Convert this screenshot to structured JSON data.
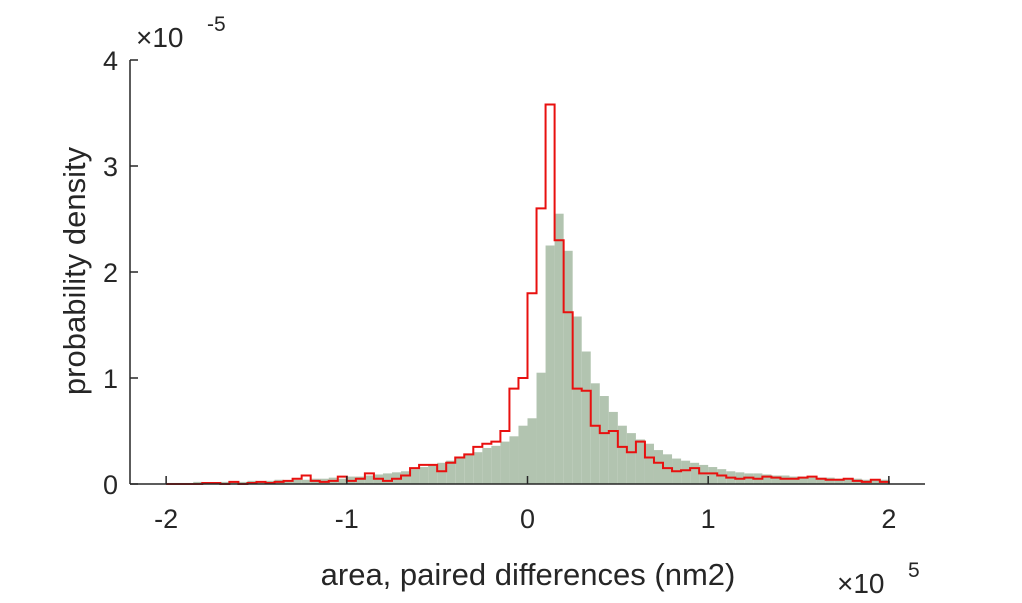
{
  "chart_data": {
    "type": "histogram",
    "xlabel": "area, paired differences (nm2)",
    "ylabel": "probability density",
    "x_multiplier": "×10",
    "x_exponent": "5",
    "y_multiplier": "×10",
    "y_exponent": "-5",
    "xlim": [
      -2.2,
      2.2
    ],
    "ylim": [
      0,
      4
    ],
    "x_ticks": [
      -2,
      -1,
      0,
      1,
      2
    ],
    "x_tick_labels": [
      "-2",
      "-1",
      "0",
      "1",
      "2"
    ],
    "y_ticks": [
      0,
      1,
      2,
      3,
      4
    ],
    "y_tick_labels": [
      "0",
      "1",
      "2",
      "3",
      "4"
    ],
    "bin_edges_start": -2.0,
    "bin_width": 0.05,
    "grid": false,
    "colors": {
      "filled": "#b2c4b0",
      "outline": "#e8100f",
      "axis": "#262626"
    },
    "series": [
      {
        "style": "filled-bars",
        "values": [
          0.01,
          0.01,
          0.01,
          0.02,
          0.01,
          0.01,
          0.02,
          0.02,
          0.02,
          0.03,
          0.02,
          0.03,
          0.04,
          0.03,
          0.04,
          0.04,
          0.05,
          0.05,
          0.06,
          0.05,
          0.07,
          0.07,
          0.08,
          0.09,
          0.1,
          0.11,
          0.12,
          0.14,
          0.16,
          0.18,
          0.2,
          0.22,
          0.25,
          0.28,
          0.3,
          0.34,
          0.36,
          0.4,
          0.45,
          0.55,
          0.62,
          1.05,
          2.25,
          2.55,
          2.2,
          1.58,
          1.25,
          0.95,
          0.83,
          0.68,
          0.55,
          0.48,
          0.42,
          0.38,
          0.32,
          0.28,
          0.24,
          0.22,
          0.2,
          0.18,
          0.16,
          0.14,
          0.12,
          0.11,
          0.1,
          0.1,
          0.09,
          0.08,
          0.08,
          0.07,
          0.07,
          0.06,
          0.06,
          0.06,
          0.05,
          0.05,
          0.05,
          0.04,
          0.04,
          0.04
        ]
      },
      {
        "style": "step-outline",
        "values": [
          0.0,
          0.0,
          0.0,
          0.0,
          0.01,
          0.01,
          0.0,
          0.02,
          0.0,
          0.01,
          0.02,
          0.01,
          0.02,
          0.03,
          0.05,
          0.08,
          0.03,
          0.02,
          0.03,
          0.07,
          0.03,
          0.05,
          0.1,
          0.05,
          0.03,
          0.05,
          0.08,
          0.15,
          0.18,
          0.18,
          0.12,
          0.2,
          0.25,
          0.28,
          0.35,
          0.38,
          0.4,
          0.5,
          0.9,
          1.0,
          1.8,
          2.6,
          3.58,
          2.3,
          1.62,
          0.9,
          0.88,
          0.55,
          0.48,
          0.5,
          0.35,
          0.3,
          0.4,
          0.25,
          0.2,
          0.15,
          0.12,
          0.13,
          0.15,
          0.1,
          0.1,
          0.08,
          0.06,
          0.05,
          0.06,
          0.05,
          0.07,
          0.06,
          0.05,
          0.05,
          0.06,
          0.07,
          0.05,
          0.04,
          0.04,
          0.05,
          0.03,
          0.02,
          0.04,
          0.02
        ]
      }
    ]
  }
}
